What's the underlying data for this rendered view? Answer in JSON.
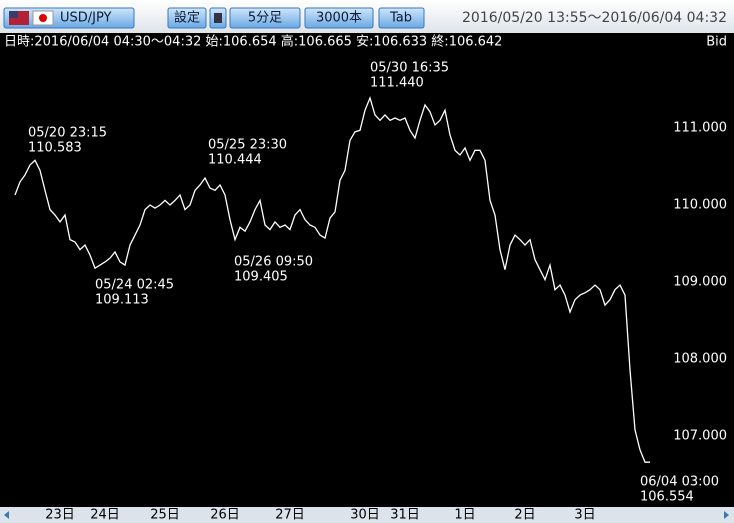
{
  "toolbar": {
    "symbol": "USD/JPY",
    "buttons": [
      "設定",
      "5分足",
      "3000本",
      "Tab"
    ],
    "range": "2016/05/20 13:55～2016/06/04 04:32"
  },
  "info": {
    "text": "日時:2016/06/04 04:30～04:32 始:106.654 高:106.665 安:106.633 終:106.642",
    "side": "Bid"
  },
  "chart_data": {
    "type": "line",
    "categories": [
      null,
      null,
      null,
      null,
      null,
      null,
      null,
      null,
      null,
      "23日",
      null,
      null,
      null,
      null,
      null,
      null,
      null,
      null,
      "24日",
      null,
      null,
      null,
      null,
      null,
      null,
      null,
      null,
      null,
      null,
      null,
      "25日",
      null,
      null,
      null,
      null,
      null,
      null,
      null,
      null,
      null,
      null,
      null,
      "26日",
      null,
      null,
      null,
      null,
      null,
      null,
      null,
      null,
      null,
      null,
      null,
      null,
      "27日",
      null,
      null,
      null,
      null,
      null,
      null,
      null,
      null,
      null,
      null,
      null,
      null,
      null,
      null,
      "30日",
      null,
      null,
      null,
      null,
      null,
      null,
      null,
      "31日",
      null,
      null,
      null,
      null,
      null,
      null,
      null,
      null,
      null,
      null,
      null,
      "1日",
      null,
      null,
      null,
      null,
      null,
      null,
      null,
      null,
      null,
      null,
      null,
      "2日",
      null,
      null,
      null,
      null,
      null,
      null,
      null,
      null,
      null,
      null,
      null,
      "3日",
      null,
      null,
      null,
      null,
      null,
      null,
      null,
      null,
      null,
      null,
      null,
      null,
      null
    ],
    "series": [
      {
        "color": "#ffffff",
        "values": [
          110.13,
          110.3,
          110.39,
          110.52,
          110.58,
          110.45,
          110.19,
          109.94,
          109.87,
          109.78,
          109.87,
          109.55,
          109.52,
          109.42,
          109.48,
          109.35,
          109.18,
          109.22,
          109.26,
          109.31,
          109.39,
          109.26,
          109.22,
          109.48,
          109.61,
          109.74,
          109.94,
          110.0,
          109.96,
          110.0,
          110.06,
          110.0,
          110.06,
          110.13,
          109.94,
          110.0,
          110.19,
          110.26,
          110.35,
          110.22,
          110.19,
          110.26,
          110.13,
          109.81,
          109.55,
          109.71,
          109.66,
          109.78,
          109.94,
          110.06,
          109.74,
          109.68,
          109.78,
          109.71,
          109.74,
          109.68,
          109.87,
          109.94,
          109.81,
          109.74,
          109.71,
          109.61,
          109.57,
          109.83,
          109.91,
          110.32,
          110.45,
          110.84,
          110.95,
          110.97,
          111.23,
          111.39,
          111.17,
          111.1,
          111.17,
          111.1,
          111.13,
          111.1,
          111.13,
          110.97,
          110.87,
          111.1,
          111.3,
          111.21,
          111.04,
          111.1,
          111.23,
          110.91,
          110.71,
          110.65,
          110.74,
          110.58,
          110.71,
          110.71,
          110.58,
          110.06,
          109.87,
          109.42,
          109.16,
          109.48,
          109.61,
          109.55,
          109.48,
          109.55,
          109.29,
          109.16,
          109.03,
          109.22,
          108.9,
          108.96,
          108.83,
          108.61,
          108.77,
          108.83,
          108.86,
          108.9,
          108.96,
          108.9,
          108.7,
          108.77,
          108.9,
          108.96,
          108.83,
          107.86,
          107.08,
          106.82,
          106.66,
          106.66
        ]
      }
    ],
    "ylim": [
      106.1,
      112.0
    ],
    "yticks": [
      {
        "value": 111,
        "label": "111.000"
      },
      {
        "value": 110,
        "label": "110.000"
      },
      {
        "value": 109,
        "label": "109.000"
      },
      {
        "value": 108,
        "label": "108.000"
      },
      {
        "value": 107,
        "label": "107.000"
      }
    ],
    "annotations": [
      {
        "time": "05/20 23:15",
        "price": "110.583"
      },
      {
        "time": "05/24 02:45",
        "price": "109.113"
      },
      {
        "time": "05/25 23:30",
        "price": "110.444"
      },
      {
        "time": "05/26 09:50",
        "price": "109.405"
      },
      {
        "time": "05/30 16:35",
        "price": "111.440"
      },
      {
        "time": "06/04 03:00",
        "price": "106.554"
      }
    ]
  }
}
